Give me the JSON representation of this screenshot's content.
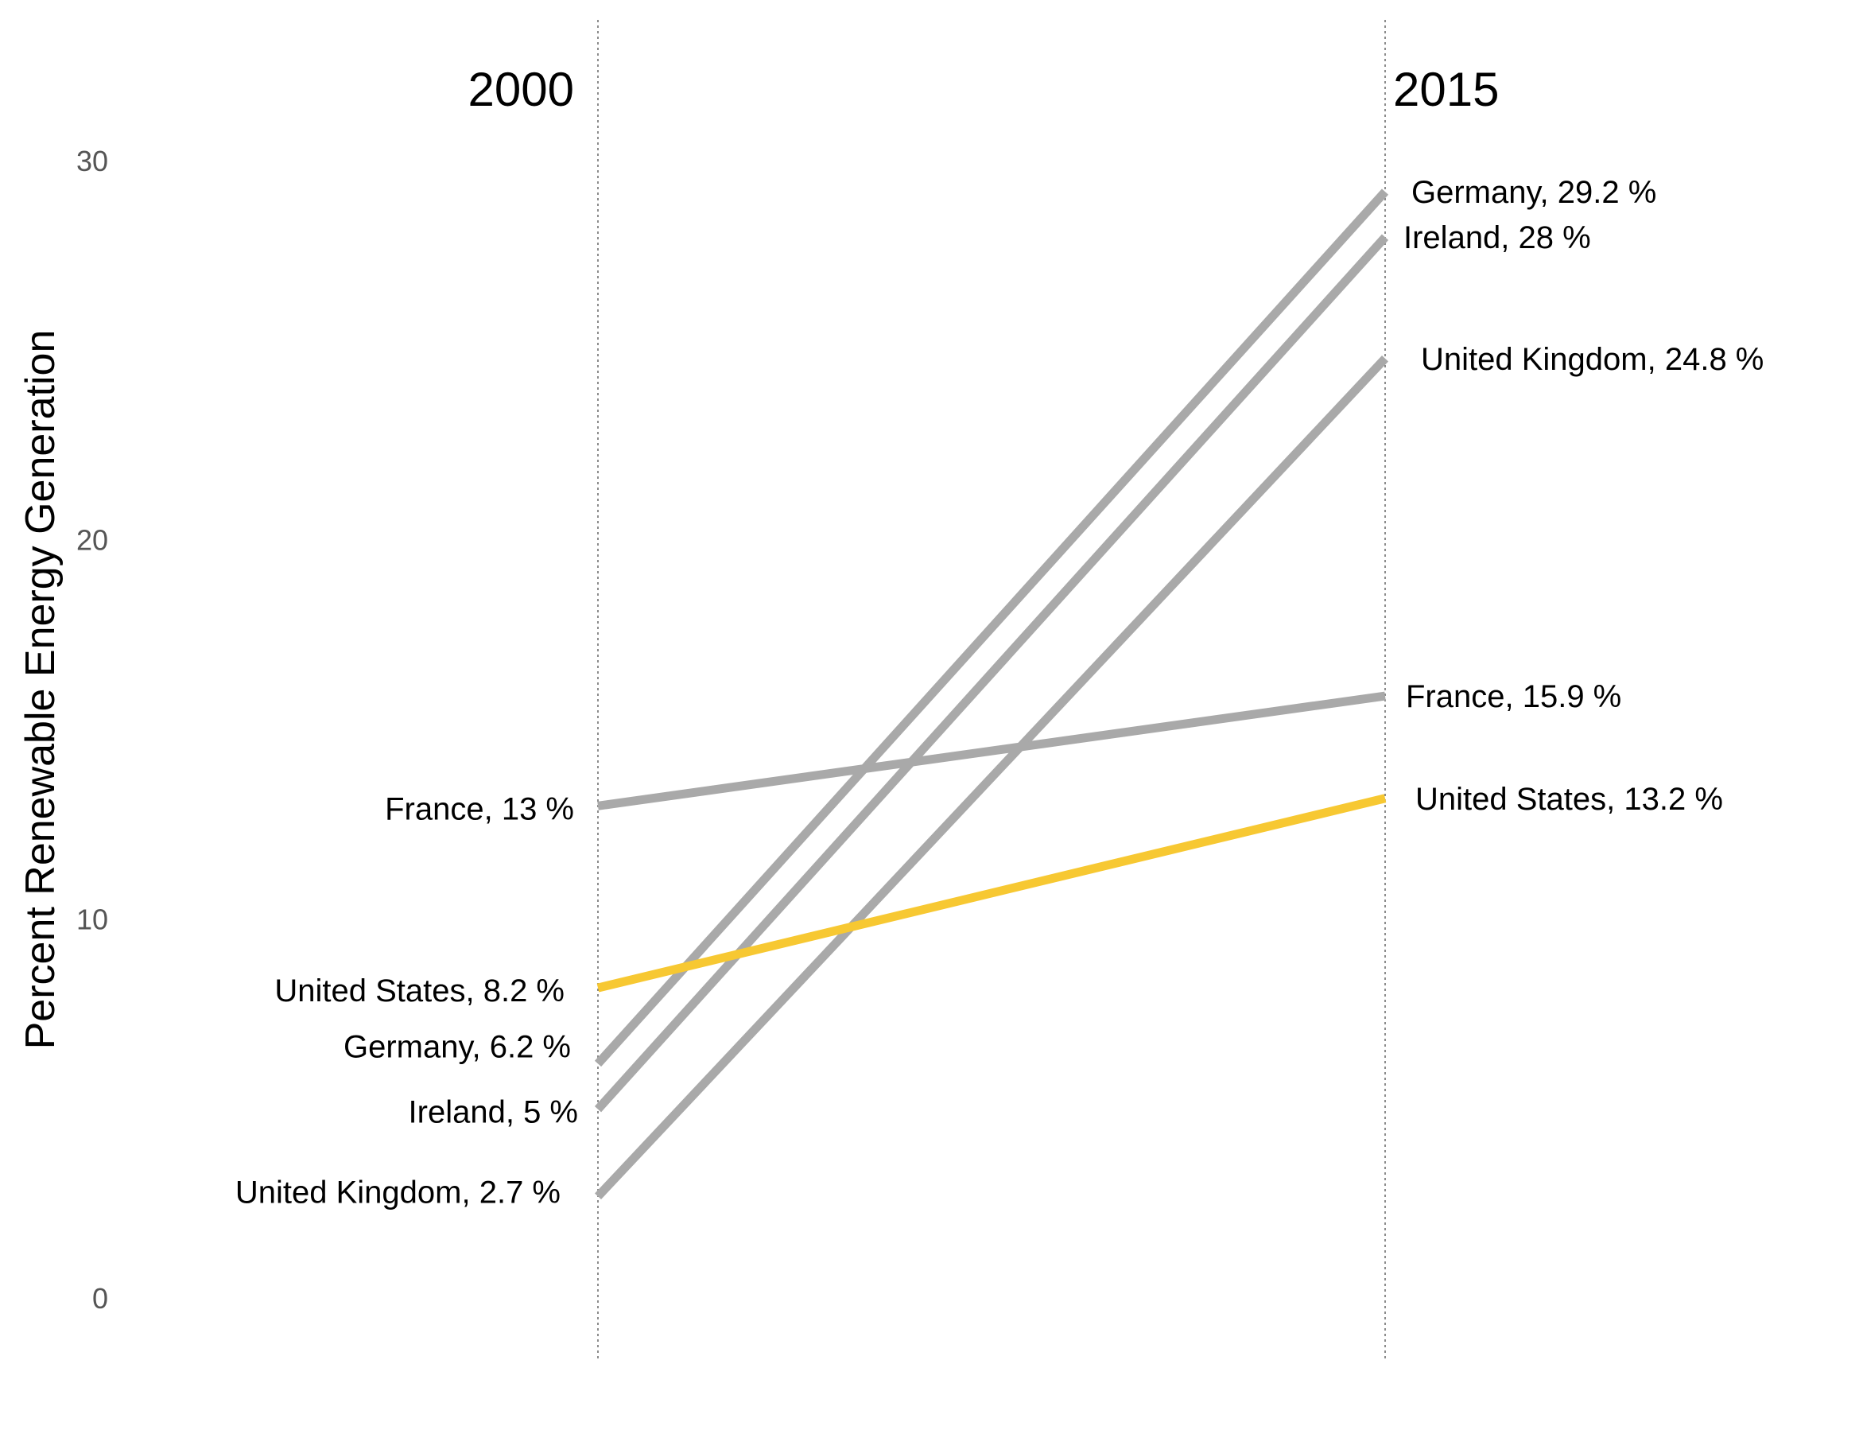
{
  "chart_data": {
    "type": "line",
    "chart_subtype": "slope",
    "x": [
      "2000",
      "2015"
    ],
    "ylabel": "Percent Renewable Energy Generation",
    "ylim": [
      0,
      31
    ],
    "yticks": [
      0,
      10,
      20,
      30
    ],
    "grid": false,
    "legend": "none",
    "series": [
      {
        "name": "Germany",
        "values": [
          6.2,
          29.2
        ],
        "color": "#a9a9a9",
        "start_label": "Germany, 6.2 %",
        "end_label": "Germany, 29.2 %"
      },
      {
        "name": "Ireland",
        "values": [
          5,
          28
        ],
        "color": "#a9a9a9",
        "start_label": "Ireland, 5 %",
        "end_label": "Ireland, 28 %"
      },
      {
        "name": "United Kingdom",
        "values": [
          2.7,
          24.8
        ],
        "color": "#a9a9a9",
        "start_label": "United Kingdom, 2.7 %",
        "end_label": "United Kingdom, 24.8 %"
      },
      {
        "name": "France",
        "values": [
          13,
          15.9
        ],
        "color": "#a9a9a9",
        "start_label": "France, 13 %",
        "end_label": "France, 15.9 %"
      },
      {
        "name": "United States",
        "values": [
          8.2,
          13.2
        ],
        "color": "#f7c832",
        "start_label": "United States, 8.2 %",
        "end_label": "United States, 13.2 %"
      }
    ]
  }
}
